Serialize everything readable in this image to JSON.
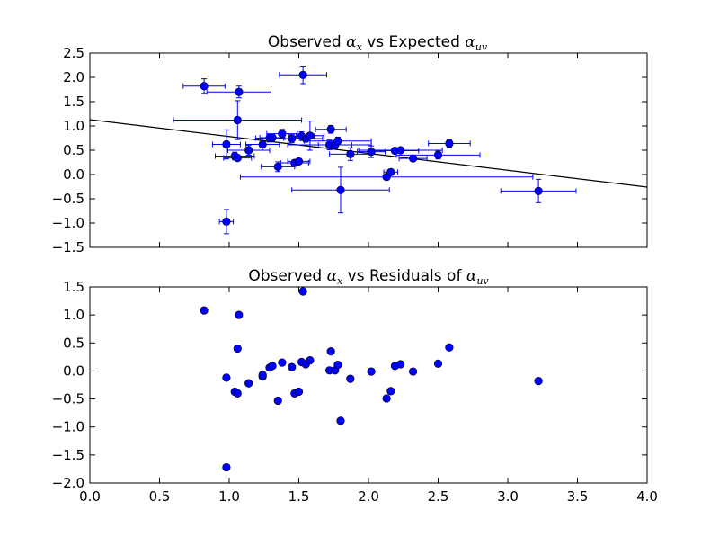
{
  "chart_data": [
    {
      "type": "scatter",
      "title_prefix": "Observed ",
      "title_sym1": "α",
      "title_sub1": "x",
      "title_mid": " vs Expected ",
      "title_sym2": "α",
      "title_sub2": "uv",
      "title_suffix": "",
      "xlim": [
        0.0,
        4.0
      ],
      "ylim": [
        -1.5,
        2.5
      ],
      "yticks": [
        "−1.5",
        "−1.0",
        "−0.5",
        "0.0",
        "0.5",
        "1.0",
        "1.5",
        "2.0",
        "2.5"
      ],
      "ytick_values": [
        -1.5,
        -1.0,
        -0.5,
        0.0,
        0.5,
        1.0,
        1.5,
        2.0,
        2.5
      ],
      "xtick_values": [
        0.0,
        0.5,
        1.0,
        1.5,
        2.0,
        2.5,
        3.0,
        3.5,
        4.0
      ],
      "fit_line": {
        "x": [
          0.0,
          4.0
        ],
        "y": [
          1.13,
          -0.26
        ]
      },
      "marker_color": "#0000ff",
      "points": [
        {
          "x": 0.82,
          "y": 1.82,
          "xerr": 0.15,
          "yerr": 0.15
        },
        {
          "x": 1.07,
          "y": 1.7,
          "xerr": 0.23,
          "yerr": 0.12
        },
        {
          "x": 1.53,
          "y": 2.05,
          "xerr": 0.17,
          "yerr": 0.18
        },
        {
          "x": 1.06,
          "y": 1.12,
          "xerr": 0.46,
          "yerr": 0.4
        },
        {
          "x": 0.98,
          "y": 0.62,
          "xerr": 0.1,
          "yerr": 0.3
        },
        {
          "x": 1.04,
          "y": 0.38,
          "xerr": 0.14,
          "yerr": 0.08
        },
        {
          "x": 1.06,
          "y": 0.34,
          "xerr": 0.1,
          "yerr": 0.06
        },
        {
          "x": 1.14,
          "y": 0.5,
          "xerr": 0.15,
          "yerr": 0.1
        },
        {
          "x": 1.24,
          "y": 0.62,
          "xerr": 0.12,
          "yerr": 0.12
        },
        {
          "x": 1.29,
          "y": 0.75,
          "xerr": 0.1,
          "yerr": 0.08
        },
        {
          "x": 1.31,
          "y": 0.76,
          "xerr": 0.09,
          "yerr": 0.07
        },
        {
          "x": 1.38,
          "y": 0.84,
          "xerr": 0.11,
          "yerr": 0.09
        },
        {
          "x": 1.45,
          "y": 0.74,
          "xerr": 0.13,
          "yerr": 0.08
        },
        {
          "x": 1.52,
          "y": 0.79,
          "xerr": 0.09,
          "yerr": 0.09
        },
        {
          "x": 1.55,
          "y": 0.74,
          "xerr": 0.12,
          "yerr": 0.07
        },
        {
          "x": 1.58,
          "y": 0.8,
          "xerr": 0.1,
          "yerr": 0.3
        },
        {
          "x": 1.35,
          "y": 0.16,
          "xerr": 0.12,
          "yerr": 0.1
        },
        {
          "x": 1.47,
          "y": 0.24,
          "xerr": 0.1,
          "yerr": 0.06
        },
        {
          "x": 1.5,
          "y": 0.27,
          "xerr": 0.08,
          "yerr": 0.05
        },
        {
          "x": 1.73,
          "y": 0.93,
          "xerr": 0.11,
          "yerr": 0.08
        },
        {
          "x": 1.72,
          "y": 0.61,
          "xerr": 0.3,
          "yerr": 0.1
        },
        {
          "x": 1.76,
          "y": 0.61,
          "xerr": 0.12,
          "yerr": 0.08
        },
        {
          "x": 1.78,
          "y": 0.69,
          "xerr": 0.24,
          "yerr": 0.08
        },
        {
          "x": 1.8,
          "y": -0.32,
          "xerr": 0.35,
          "yerr": 0.47
        },
        {
          "x": 1.87,
          "y": 0.42,
          "xerr": 0.15,
          "yerr": 0.13
        },
        {
          "x": 2.02,
          "y": 0.47,
          "xerr": 0.1,
          "yerr": 0.12
        },
        {
          "x": 2.13,
          "y": -0.05,
          "xerr": 1.05,
          "yerr": 0.05
        },
        {
          "x": 2.16,
          "y": 0.05,
          "xerr": 0.05,
          "yerr": 0.06
        },
        {
          "x": 2.19,
          "y": 0.49,
          "xerr": 0.17,
          "yerr": 0.05
        },
        {
          "x": 2.23,
          "y": 0.5,
          "xerr": 0.3,
          "yerr": 0.05
        },
        {
          "x": 2.32,
          "y": 0.33,
          "xerr": 0.1,
          "yerr": 0.05
        },
        {
          "x": 2.5,
          "y": 0.4,
          "xerr": 0.3,
          "yerr": 0.08
        },
        {
          "x": 2.58,
          "y": 0.64,
          "xerr": 0.15,
          "yerr": 0.08
        },
        {
          "x": 3.22,
          "y": -0.34,
          "xerr": 0.27,
          "yerr": 0.24
        },
        {
          "x": 0.98,
          "y": -0.97,
          "xerr": 0.05,
          "yerr": 0.25
        }
      ]
    },
    {
      "type": "scatter",
      "title_prefix": "Observed ",
      "title_sym1": "α",
      "title_sub1": "x",
      "title_mid": " vs Residuals of ",
      "title_sym2": "α",
      "title_sub2": "uv",
      "title_suffix": "",
      "xlim": [
        0.0,
        4.0
      ],
      "ylim": [
        -2.0,
        1.5
      ],
      "xticks": [
        "0.0",
        "0.5",
        "1.0",
        "1.5",
        "2.0",
        "2.5",
        "3.0",
        "3.5",
        "4.0"
      ],
      "xtick_values": [
        0.0,
        0.5,
        1.0,
        1.5,
        2.0,
        2.5,
        3.0,
        3.5,
        4.0
      ],
      "yticks": [
        "−2.0",
        "−1.5",
        "−1.0",
        "−0.5",
        "0.0",
        "0.5",
        "1.0",
        "1.5"
      ],
      "ytick_values": [
        -2.0,
        -1.5,
        -1.0,
        -0.5,
        0.0,
        0.5,
        1.0,
        1.5
      ],
      "marker_color": "#0000ff",
      "points": [
        {
          "x": 0.82,
          "y": 1.08
        },
        {
          "x": 1.07,
          "y": 1.0
        },
        {
          "x": 1.53,
          "y": 1.42
        },
        {
          "x": 1.06,
          "y": 0.4
        },
        {
          "x": 0.98,
          "y": -0.12
        },
        {
          "x": 1.04,
          "y": -0.37
        },
        {
          "x": 1.06,
          "y": -0.4
        },
        {
          "x": 1.14,
          "y": -0.22
        },
        {
          "x": 1.24,
          "y": -0.1
        },
        {
          "x": 1.24,
          "y": -0.07
        },
        {
          "x": 1.29,
          "y": 0.06
        },
        {
          "x": 1.31,
          "y": 0.09
        },
        {
          "x": 1.35,
          "y": -0.53
        },
        {
          "x": 1.38,
          "y": 0.15
        },
        {
          "x": 1.45,
          "y": 0.07
        },
        {
          "x": 1.47,
          "y": -0.4
        },
        {
          "x": 1.5,
          "y": -0.37
        },
        {
          "x": 1.52,
          "y": 0.16
        },
        {
          "x": 1.55,
          "y": 0.12
        },
        {
          "x": 1.58,
          "y": 0.19
        },
        {
          "x": 1.72,
          "y": 0.01
        },
        {
          "x": 1.73,
          "y": 0.35
        },
        {
          "x": 1.76,
          "y": 0.01
        },
        {
          "x": 1.78,
          "y": 0.11
        },
        {
          "x": 1.8,
          "y": -0.89
        },
        {
          "x": 1.87,
          "y": -0.14
        },
        {
          "x": 2.02,
          "y": -0.01
        },
        {
          "x": 2.13,
          "y": -0.49
        },
        {
          "x": 2.16,
          "y": -0.36
        },
        {
          "x": 2.19,
          "y": 0.09
        },
        {
          "x": 2.23,
          "y": 0.12
        },
        {
          "x": 2.32,
          "y": -0.01
        },
        {
          "x": 2.5,
          "y": 0.13
        },
        {
          "x": 2.58,
          "y": 0.42
        },
        {
          "x": 3.22,
          "y": -0.18
        },
        {
          "x": 0.98,
          "y": -1.72
        }
      ]
    }
  ]
}
